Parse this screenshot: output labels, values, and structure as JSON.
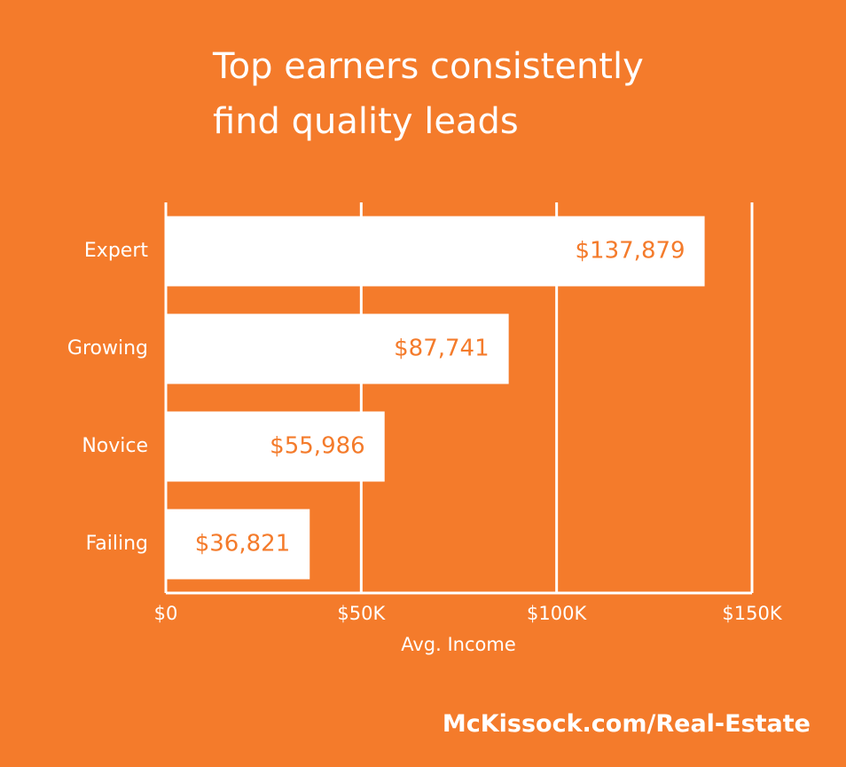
{
  "chart_data": {
    "type": "bar",
    "orientation": "horizontal",
    "title": "Top earners consistently find quality leads",
    "categories": [
      "Expert",
      "Growing",
      "Novice",
      "Failing"
    ],
    "values": [
      137879,
      87741,
      55986,
      36821
    ],
    "value_labels": [
      "$137,879",
      "$87,741",
      "$55,986",
      "$36,821"
    ],
    "color": "#ffffff",
    "label_color": "#f47b2b",
    "xlim": [
      0,
      150000
    ],
    "xticks": [
      {
        "value": 0,
        "label": "$0"
      },
      {
        "value": 50000,
        "label": "$50K"
      },
      {
        "value": 100000,
        "label": "$100K"
      },
      {
        "value": 150000,
        "label": "$150K"
      }
    ],
    "xlabel": "Avg. Income",
    "grid": true,
    "source": "McKissock.com/Real-Estate"
  }
}
